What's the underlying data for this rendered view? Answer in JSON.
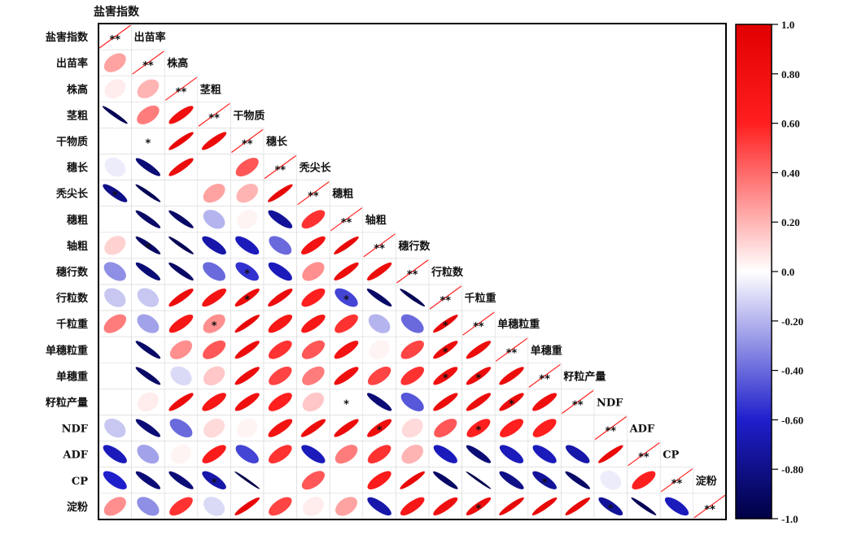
{
  "chart_data": {
    "type": "heatmap",
    "subtype": "correlation-ellipse-lower-triangle",
    "top_label": "盐害指数",
    "variables": [
      "盐害指数",
      "出苗率",
      "株高",
      "茎粗",
      "干物质",
      "穗长",
      "秃尖长",
      "穗粗",
      "轴粗",
      "穗行数",
      "行粒数",
      "千粒重",
      "单穗粒重",
      "单穗重",
      "籽粒产量",
      "NDF",
      "ADF",
      "CP",
      "淀粉"
    ],
    "diagonal_mark": "**",
    "matrix": [
      [
        1.0
      ],
      [
        0.25,
        1.0
      ],
      [
        0.05,
        0.2,
        1.0
      ],
      [
        -0.95,
        0.35,
        0.8,
        1.0
      ],
      [
        0.0,
        0.0,
        0.9,
        0.85,
        1.0
      ],
      [
        -0.05,
        -0.85,
        0.85,
        0.0,
        0.45,
        1.0
      ],
      [
        -0.8,
        -0.95,
        0.0,
        0.25,
        0.2,
        0.9,
        1.0
      ],
      [
        0.0,
        -0.9,
        -0.9,
        -0.2,
        0.03,
        -0.75,
        0.55,
        1.0
      ],
      [
        0.12,
        -0.9,
        -0.95,
        -0.7,
        -0.65,
        -0.4,
        0.75,
        0.9,
        1.0
      ],
      [
        -0.3,
        -0.85,
        -0.9,
        -0.4,
        -0.55,
        -0.65,
        0.3,
        0.85,
        0.85,
        1.0
      ],
      [
        -0.15,
        -0.15,
        0.85,
        0.75,
        0.85,
        0.85,
        0.6,
        -0.5,
        -0.9,
        -0.95,
        1.0
      ],
      [
        0.35,
        -0.25,
        0.7,
        0.3,
        0.9,
        0.7,
        0.7,
        0.55,
        -0.2,
        -0.4,
        0.9,
        1.0
      ],
      [
        0.0,
        -0.9,
        0.3,
        0.45,
        0.85,
        0.55,
        0.45,
        0.75,
        0.03,
        0.5,
        0.85,
        0.85,
        1.0
      ],
      [
        0.0,
        -0.9,
        -0.1,
        0.15,
        0.85,
        0.5,
        0.35,
        0.8,
        0.5,
        0.55,
        0.8,
        0.85,
        0.85,
        1.0
      ],
      [
        0.0,
        0.05,
        0.85,
        0.7,
        0.8,
        0.6,
        0.15,
        0.0,
        -0.85,
        -0.45,
        0.85,
        0.85,
        0.85,
        0.8,
        1.0
      ],
      [
        -0.15,
        -0.85,
        -0.4,
        0.1,
        0.03,
        0.75,
        0.85,
        0.85,
        0.8,
        0.1,
        0.45,
        0.6,
        0.6,
        0.6,
        0.0,
        1.0
      ],
      [
        -0.65,
        -0.25,
        0.03,
        0.65,
        -0.5,
        0.55,
        -0.65,
        0.35,
        0.55,
        0.2,
        -0.65,
        -0.85,
        -0.65,
        -0.65,
        -0.7,
        0.9,
        1.0
      ],
      [
        -0.6,
        -0.85,
        -0.85,
        -0.7,
        -0.98,
        0.0,
        0.45,
        0.0,
        0.65,
        0.9,
        -0.9,
        -0.98,
        -0.8,
        -0.75,
        -0.9,
        -0.05,
        0.6,
        1.0
      ],
      [
        0.3,
        -0.3,
        0.55,
        -0.1,
        0.9,
        0.5,
        0.05,
        0.25,
        -0.7,
        0.7,
        0.8,
        0.85,
        0.9,
        0.9,
        0.9,
        -0.75,
        -0.95,
        -0.65,
        1.0
      ]
    ],
    "significant_cells": [
      [
        5,
        2
      ],
      [
        7,
        1
      ],
      [
        9,
        2
      ],
      [
        10,
        5
      ],
      [
        11,
        8
      ],
      [
        11,
        5
      ],
      [
        12,
        4
      ],
      [
        12,
        11
      ],
      [
        13,
        11
      ],
      [
        14,
        11
      ],
      [
        14,
        12
      ],
      [
        15,
        8
      ],
      [
        15,
        13
      ],
      [
        16,
        9
      ],
      [
        16,
        12
      ],
      [
        18,
        4
      ],
      [
        18,
        14
      ],
      [
        19,
        12
      ],
      [
        19,
        16
      ]
    ],
    "colorbar": {
      "ticks": [
        "1.0",
        "0.80",
        "0.60",
        "0.40",
        "0.20",
        "0.0",
        "-0.20",
        "-0.40",
        "-0.60",
        "-0.80",
        "-1.0"
      ],
      "range": [
        -1,
        1
      ],
      "colors": [
        "#000044",
        "#1f1fcc",
        "#ffffff",
        "#ff1f1f",
        "#e00000"
      ]
    }
  }
}
